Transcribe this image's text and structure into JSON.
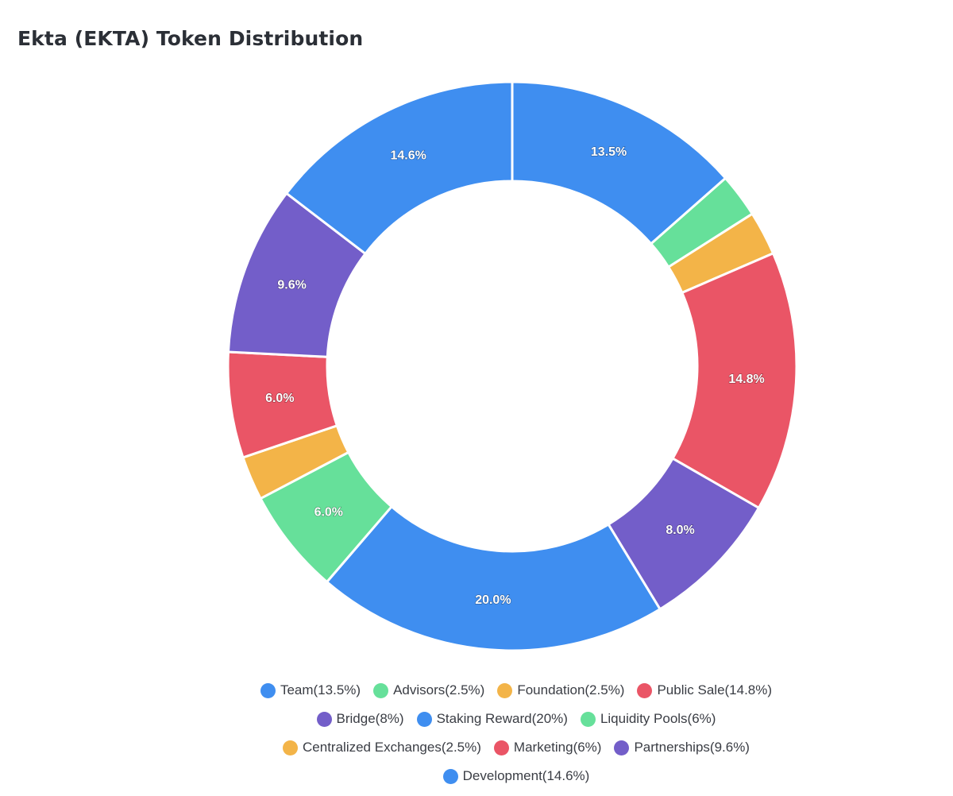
{
  "colors": {
    "blue": "#3f8ef0",
    "green": "#66e09a",
    "orange": "#f3b448",
    "red": "#ea5566",
    "purple": "#735ec9"
  },
  "chart_data": {
    "type": "pie",
    "donut": true,
    "title": "Ekta (EKTA) Token Distribution",
    "legend_position": "bottom",
    "legend_rows": [
      4,
      3,
      3,
      1
    ],
    "slices": [
      {
        "legend": "Team(13.5%)",
        "value": 13.5,
        "label": "13.5%",
        "color": "#3f8ef0"
      },
      {
        "legend": "Advisors(2.5%)",
        "value": 2.5,
        "label": "",
        "color": "#66e09a"
      },
      {
        "legend": "Foundation(2.5%)",
        "value": 2.5,
        "label": "",
        "color": "#f3b448"
      },
      {
        "legend": "Public Sale(14.8%)",
        "value": 14.8,
        "label": "14.8%",
        "color": "#ea5566"
      },
      {
        "legend": "Bridge(8%)",
        "value": 8,
        "label": "8.0%",
        "color": "#735ec9"
      },
      {
        "legend": "Staking Reward(20%)",
        "value": 20,
        "label": "20.0%",
        "color": "#3f8ef0"
      },
      {
        "legend": "Liquidity Pools(6%)",
        "value": 6,
        "label": "6.0%",
        "color": "#66e09a"
      },
      {
        "legend": "Centralized Exchanges(2.5%)",
        "value": 2.5,
        "label": "",
        "color": "#f3b448"
      },
      {
        "legend": "Marketing(6%)",
        "value": 6,
        "label": "6.0%",
        "color": "#ea5566"
      },
      {
        "legend": "Partnerships(9.6%)",
        "value": 9.6,
        "label": "9.6%",
        "color": "#735ec9"
      },
      {
        "legend": "Development(14.6%)",
        "value": 14.6,
        "label": "14.6%",
        "color": "#3f8ef0"
      }
    ]
  }
}
